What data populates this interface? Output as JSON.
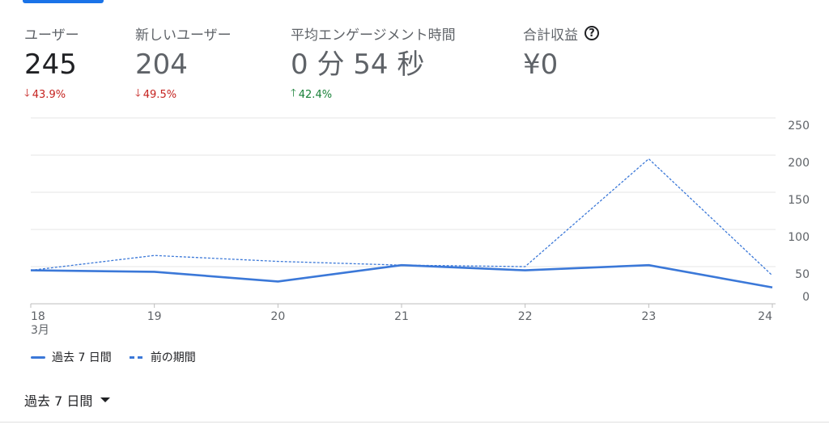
{
  "metrics": [
    {
      "label": "ユーザー",
      "value": "245",
      "change": "43.9%",
      "direction": "down"
    },
    {
      "label": "新しいユーザー",
      "value": "204",
      "change": "49.5%",
      "direction": "down"
    },
    {
      "label": "平均エンゲージメント時間",
      "value": "0 分 54 秒",
      "change": "42.4%",
      "direction": "up"
    },
    {
      "label": "合計収益",
      "value": "¥0",
      "icon": "help-circle-icon"
    }
  ],
  "chart_data": {
    "type": "line",
    "x": [
      "18",
      "19",
      "20",
      "21",
      "22",
      "23",
      "24"
    ],
    "x_sub_label": "3月",
    "y_ticks": [
      0,
      50,
      100,
      150,
      200,
      250
    ],
    "ylim": [
      0,
      250
    ],
    "y_axis_side": "right",
    "grid": true,
    "legend_position": "bottom-left",
    "series": [
      {
        "name": "過去 7 日間",
        "style": "solid",
        "color": "#3b78d8",
        "values": [
          45,
          43,
          30,
          52,
          45,
          52,
          22
        ]
      },
      {
        "name": "前の期間",
        "style": "dashed",
        "color": "#3b78d8",
        "values": [
          45,
          65,
          57,
          52,
          50,
          195,
          38
        ]
      }
    ]
  },
  "date_range": {
    "label": "過去 7 日間"
  }
}
